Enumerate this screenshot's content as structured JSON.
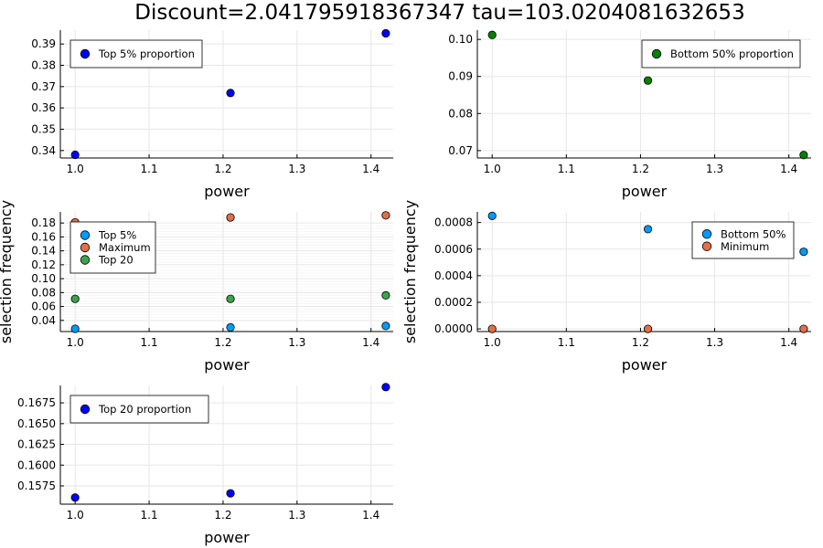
{
  "title": "Discount=2.041795918367347 tau=103.0204081632653",
  "chart_data": [
    {
      "type": "scatter",
      "xlabel": "power",
      "ylabel": "",
      "xlim": [
        0.98,
        1.43
      ],
      "ylim": [
        0.3365,
        0.3965
      ],
      "xticks": [
        1.0,
        1.1,
        1.2,
        1.3,
        1.4
      ],
      "xtick_labels": [
        "1.0",
        "1.1",
        "1.2",
        "1.3",
        "1.4"
      ],
      "yticks": [
        0.34,
        0.35,
        0.36,
        0.37,
        0.38,
        0.39
      ],
      "ytick_labels": [
        "0.34",
        "0.35",
        "0.36",
        "0.37",
        "0.38",
        "0.39"
      ],
      "grid": true,
      "minor_grid": false,
      "legend_position": "top-left",
      "series": [
        {
          "name": "Top 5% proportion",
          "color": "#0000ff",
          "x": [
            1.0,
            1.21,
            1.42
          ],
          "y": [
            0.338,
            0.367,
            0.395
          ]
        }
      ]
    },
    {
      "type": "scatter",
      "xlabel": "power",
      "ylabel": "",
      "xlim": [
        0.98,
        1.43
      ],
      "ylim": [
        0.068,
        0.1025
      ],
      "xticks": [
        1.0,
        1.1,
        1.2,
        1.3,
        1.4
      ],
      "xtick_labels": [
        "1.0",
        "1.1",
        "1.2",
        "1.3",
        "1.4"
      ],
      "yticks": [
        0.07,
        0.08,
        0.09,
        0.1
      ],
      "ytick_labels": [
        "0.07",
        "0.08",
        "0.09",
        "0.10"
      ],
      "grid": true,
      "minor_grid": false,
      "legend_position": "top-right",
      "series": [
        {
          "name": "Bottom 50% proportion",
          "color": "#008000",
          "x": [
            1.0,
            1.21,
            1.42
          ],
          "y": [
            0.1012,
            0.0889,
            0.0688
          ]
        }
      ]
    },
    {
      "type": "scatter",
      "xlabel": "power",
      "ylabel": "selection frequency",
      "xlim": [
        0.98,
        1.43
      ],
      "ylim": [
        0.024,
        0.196
      ],
      "xticks": [
        1.0,
        1.1,
        1.2,
        1.3,
        1.4
      ],
      "xtick_labels": [
        "1.0",
        "1.1",
        "1.2",
        "1.3",
        "1.4"
      ],
      "yticks": [
        0.04,
        0.06,
        0.08,
        0.1,
        0.12,
        0.14,
        0.16,
        0.18
      ],
      "ytick_labels": [
        "0.04",
        "0.06",
        "0.08",
        "0.10",
        "0.12",
        "0.14",
        "0.16",
        "0.18"
      ],
      "grid": true,
      "minor_grid": true,
      "legend_position": "top-left",
      "series": [
        {
          "name": "Top 5%",
          "color": "#009af9",
          "x": [
            1.0,
            1.21,
            1.42
          ],
          "y": [
            0.028,
            0.03,
            0.032
          ]
        },
        {
          "name": "Maximum",
          "color": "#e26f46",
          "x": [
            1.0,
            1.21,
            1.42
          ],
          "y": [
            0.181,
            0.188,
            0.191
          ]
        },
        {
          "name": "Top 20",
          "color": "#3da44d",
          "x": [
            1.0,
            1.21,
            1.42
          ],
          "y": [
            0.071,
            0.071,
            0.076
          ]
        }
      ]
    },
    {
      "type": "scatter",
      "xlabel": "power",
      "ylabel": "selection frequency",
      "xlim": [
        0.98,
        1.43
      ],
      "ylim": [
        -2e-05,
        0.00088
      ],
      "xticks": [
        1.0,
        1.1,
        1.2,
        1.3,
        1.4
      ],
      "xtick_labels": [
        "1.0",
        "1.1",
        "1.2",
        "1.3",
        "1.4"
      ],
      "yticks": [
        0.0,
        0.0002,
        0.0004,
        0.0006,
        0.0008
      ],
      "ytick_labels": [
        "0.0000",
        "0.0002",
        "0.0004",
        "0.0006",
        "0.0008"
      ],
      "grid": true,
      "minor_grid": false,
      "legend_position": "top-right",
      "series": [
        {
          "name": "Bottom 50%",
          "color": "#009af9",
          "x": [
            1.0,
            1.21,
            1.42
          ],
          "y": [
            0.00085,
            0.00075,
            0.00058
          ]
        },
        {
          "name": "Minimum",
          "color": "#e26f46",
          "x": [
            1.0,
            1.21,
            1.42
          ],
          "y": [
            0.0,
            0.0,
            0.0
          ]
        }
      ]
    },
    {
      "type": "scatter",
      "xlabel": "power",
      "ylabel": "",
      "xlim": [
        0.98,
        1.43
      ],
      "ylim": [
        0.1553,
        0.1696
      ],
      "xticks": [
        1.0,
        1.1,
        1.2,
        1.3,
        1.4
      ],
      "xtick_labels": [
        "1.0",
        "1.1",
        "1.2",
        "1.3",
        "1.4"
      ],
      "yticks": [
        0.1575,
        0.16,
        0.1625,
        0.165,
        0.1675
      ],
      "ytick_labels": [
        "0.1575",
        "0.1600",
        "0.1625",
        "0.1650",
        "0.1675"
      ],
      "grid": true,
      "minor_grid": false,
      "legend_position": "top-left",
      "series": [
        {
          "name": "Top 20 proportion",
          "color": "#0000ff",
          "x": [
            1.0,
            1.21,
            1.42
          ],
          "y": [
            0.1561,
            0.1566,
            0.1694
          ]
        }
      ]
    }
  ]
}
